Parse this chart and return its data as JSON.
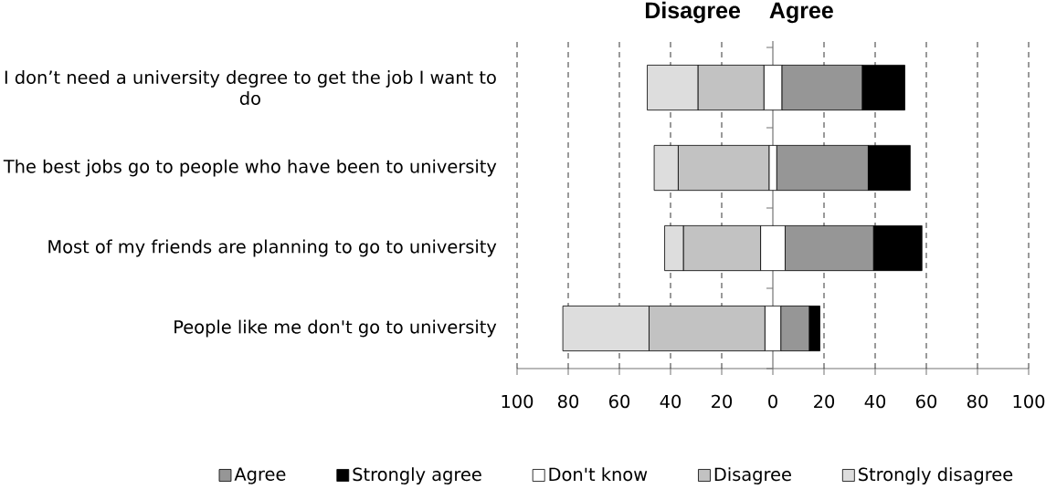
{
  "chart_data": {
    "type": "bar",
    "orientation": "horizontal",
    "title": "Disagree Agree",
    "categories": [
      "I don’t need a university degree to get the job I want to do",
      "The best jobs go to people who have been to university",
      "Most of my friends are planning to go to university",
      "People like me don't go to university"
    ],
    "series": [
      {
        "name": "Agree",
        "color": "#969696",
        "base": [
          3.5,
          1.5,
          4.8,
          3.1
        ],
        "values": [
          31.5,
          35.8,
          34.6,
          11.2
        ]
      },
      {
        "name": "Strongly agree",
        "color": "#000000",
        "base": [
          35,
          37.3,
          39.4,
          14.3
        ],
        "values": [
          16.6,
          16.4,
          18.9,
          4.1
        ]
      },
      {
        "name": "Don't know",
        "color": "#ffffff",
        "base": [
          -3.5,
          -1.5,
          -4.8,
          -3.1
        ],
        "values": [
          7,
          3,
          9.6,
          6.2
        ]
      },
      {
        "name": "Disagree",
        "color": "#c2c2c2",
        "base": [
          -29.3,
          -37,
          -35,
          -48.4
        ],
        "values": [
          25.8,
          35.5,
          30.2,
          45.3
        ]
      },
      {
        "name": "Strongly disagree",
        "color": "#dddddd",
        "base": [
          -49.1,
          -46.4,
          -42.3,
          -82.1
        ],
        "values": [
          19.8,
          9.4,
          7.3,
          33.7
        ]
      }
    ],
    "xlim": [
      -100,
      100
    ],
    "xticks": [
      {
        "value": -100,
        "label": "100"
      },
      {
        "value": -80,
        "label": "80"
      },
      {
        "value": -60,
        "label": "60"
      },
      {
        "value": -40,
        "label": "40"
      },
      {
        "value": -20,
        "label": "20"
      },
      0,
      20,
      40,
      60,
      80,
      100
    ],
    "grid": "x",
    "legend": "bottom"
  }
}
